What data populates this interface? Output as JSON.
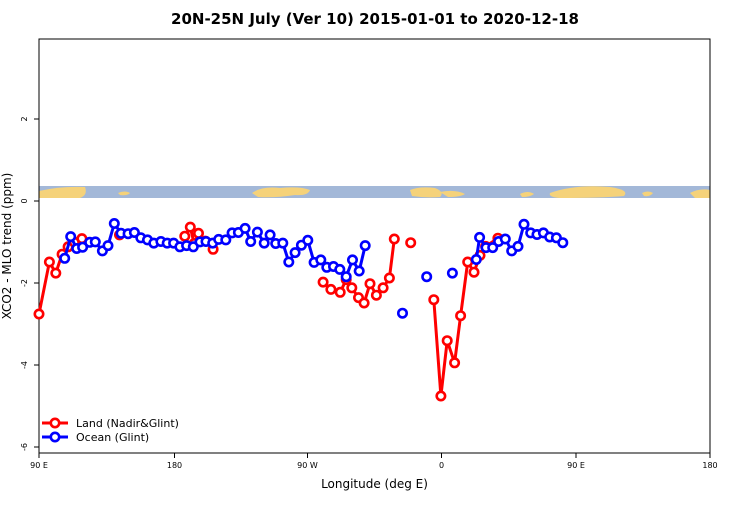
{
  "chart_data": {
    "type": "line",
    "title": "20N-25N July (Ver 10)   2015-01-01 to 2020-12-18",
    "xlabel": "Longitude (deg E)",
    "ylabel": "XCO2 - MLO trend (ppm)",
    "xlim": [
      90,
      450
    ],
    "ylim": [
      -6.1,
      4
    ],
    "x_ticks": [
      {
        "value": 90,
        "label": "90 E"
      },
      {
        "value": 180,
        "label": "180"
      },
      {
        "value": 270,
        "label": "90 W"
      },
      {
        "value": 360,
        "label": "0"
      },
      {
        "value": 450,
        "label": "90 E"
      },
      {
        "value": 540,
        "label": "180"
      }
    ],
    "y_ticks": [
      {
        "value": -6,
        "label": "-6"
      },
      {
        "value": -4,
        "label": "-4"
      },
      {
        "value": -2,
        "label": "-2"
      },
      {
        "value": 0,
        "label": "0"
      },
      {
        "value": 2,
        "label": "2"
      }
    ],
    "legend_position": "bottom-left",
    "map_strip": {
      "y_top": 0.35,
      "y_bottom": 0.05,
      "ocean_color": "#a3b8d8",
      "land_color": "#f5d27a"
    },
    "series": [
      {
        "name": "Land (Nadir&Glint)",
        "color": "#ff0000",
        "segments": [
          [
            [
              90.0,
              -2.71
            ],
            [
              95.6,
              -1.44
            ],
            [
              99.0,
              -1.71
            ],
            [
              102.4,
              -1.25
            ],
            [
              105.6,
              -1.07
            ],
            [
              109.0,
              -0.96
            ],
            [
              113.0,
              -0.87
            ]
          ],
          [
            [
              133.2,
              -0.78
            ]
          ],
          [
            [
              168.2,
              -0.81
            ],
            [
              171.2,
              -0.59
            ],
            [
              173.2,
              -0.99
            ],
            [
              175.6,
              -0.74
            ],
            [
              179.2,
              -0.93
            ],
            [
              183.4,
              -1.13
            ]
          ],
          [
            [
              242.4,
              -1.93
            ],
            [
              246.6,
              -2.11
            ]
          ],
          [
            [
              251.6,
              -2.18
            ],
            [
              254.8,
              -1.87
            ],
            [
              257.8,
              -2.07
            ],
            [
              261.4,
              -2.31
            ],
            [
              264.4,
              -2.44
            ],
            [
              267.6,
              -1.97
            ],
            [
              271.0,
              -2.25
            ],
            [
              274.6,
              -2.07
            ],
            [
              278.0,
              -1.83
            ],
            [
              280.6,
              -0.88
            ]
          ],
          [
            [
              289.4,
              -0.97
            ]
          ],
          [
            [
              301.8,
              -2.36
            ],
            [
              305.6,
              -4.71
            ],
            [
              309.0,
              -3.36
            ],
            [
              313.0,
              -3.9
            ],
            [
              316.2,
              -2.75
            ],
            [
              320.0,
              -1.44
            ],
            [
              323.4,
              -1.69
            ],
            [
              326.6,
              -1.28
            ],
            [
              329.6,
              -1.06
            ],
            [
              336.2,
              -0.86
            ]
          ]
        ]
      },
      {
        "name": "Ocean (Glint)",
        "color": "#0000ff",
        "segments": [
          [
            [
              103.8,
              -1.35
            ],
            [
              107.0,
              -0.82
            ],
            [
              110.2,
              -1.11
            ],
            [
              113.4,
              -1.08
            ],
            [
              117.2,
              -0.96
            ],
            [
              120.2,
              -0.95
            ],
            [
              124.0,
              -1.17
            ],
            [
              127.0,
              -1.04
            ],
            [
              130.4,
              -0.5
            ],
            [
              134.0,
              -0.74
            ],
            [
              137.8,
              -0.75
            ],
            [
              141.2,
              -0.72
            ],
            [
              144.6,
              -0.85
            ],
            [
              148.2,
              -0.9
            ],
            [
              151.6,
              -0.98
            ],
            [
              155.4,
              -0.94
            ],
            [
              158.8,
              -0.98
            ],
            [
              162.2,
              -0.98
            ],
            [
              165.6,
              -1.07
            ],
            [
              169.2,
              -1.04
            ],
            [
              172.8,
              -1.07
            ],
            [
              176.4,
              -0.95
            ],
            [
              179.6,
              -0.94
            ],
            [
              183.2,
              -0.98
            ],
            [
              186.4,
              -0.89
            ],
            [
              190.2,
              -0.9
            ],
            [
              193.6,
              -0.73
            ],
            [
              197.0,
              -0.72
            ],
            [
              200.6,
              -0.62
            ],
            [
              203.6,
              -0.94
            ],
            [
              207.2,
              -0.71
            ],
            [
              210.8,
              -0.98
            ],
            [
              214.0,
              -0.78
            ],
            [
              217.0,
              -0.99
            ],
            [
              220.8,
              -0.98
            ],
            [
              224.0,
              -1.44
            ],
            [
              227.4,
              -1.21
            ],
            [
              230.8,
              -1.03
            ],
            [
              234.2,
              -0.91
            ],
            [
              237.6,
              -1.45
            ],
            [
              241.2,
              -1.39
            ],
            [
              244.4,
              -1.57
            ],
            [
              248.0,
              -1.55
            ],
            [
              251.4,
              -1.62
            ],
            [
              254.8,
              -1.8
            ],
            [
              258.2,
              -1.39
            ],
            [
              261.8,
              -1.66
            ],
            [
              265.0,
              -1.04
            ]
          ],
          [
            [
              285.0,
              -2.69
            ]
          ],
          [
            [
              298.0,
              -1.8
            ]
          ],
          [
            [
              311.8,
              -1.71
            ]
          ],
          [
            [
              324.6,
              -1.38
            ],
            [
              326.4,
              -0.84
            ],
            [
              329.8,
              -1.09
            ],
            [
              333.4,
              -1.09
            ],
            [
              336.6,
              -0.94
            ],
            [
              340.2,
              -0.88
            ],
            [
              343.6,
              -1.17
            ],
            [
              347.0,
              -1.06
            ],
            [
              350.2,
              -0.52
            ],
            [
              353.8,
              -0.73
            ],
            [
              357.2,
              -0.77
            ],
            [
              360.6,
              -0.73
            ],
            [
              364.0,
              -0.83
            ],
            [
              367.6,
              -0.85
            ],
            [
              371.0,
              -0.97
            ]
          ]
        ]
      }
    ]
  }
}
